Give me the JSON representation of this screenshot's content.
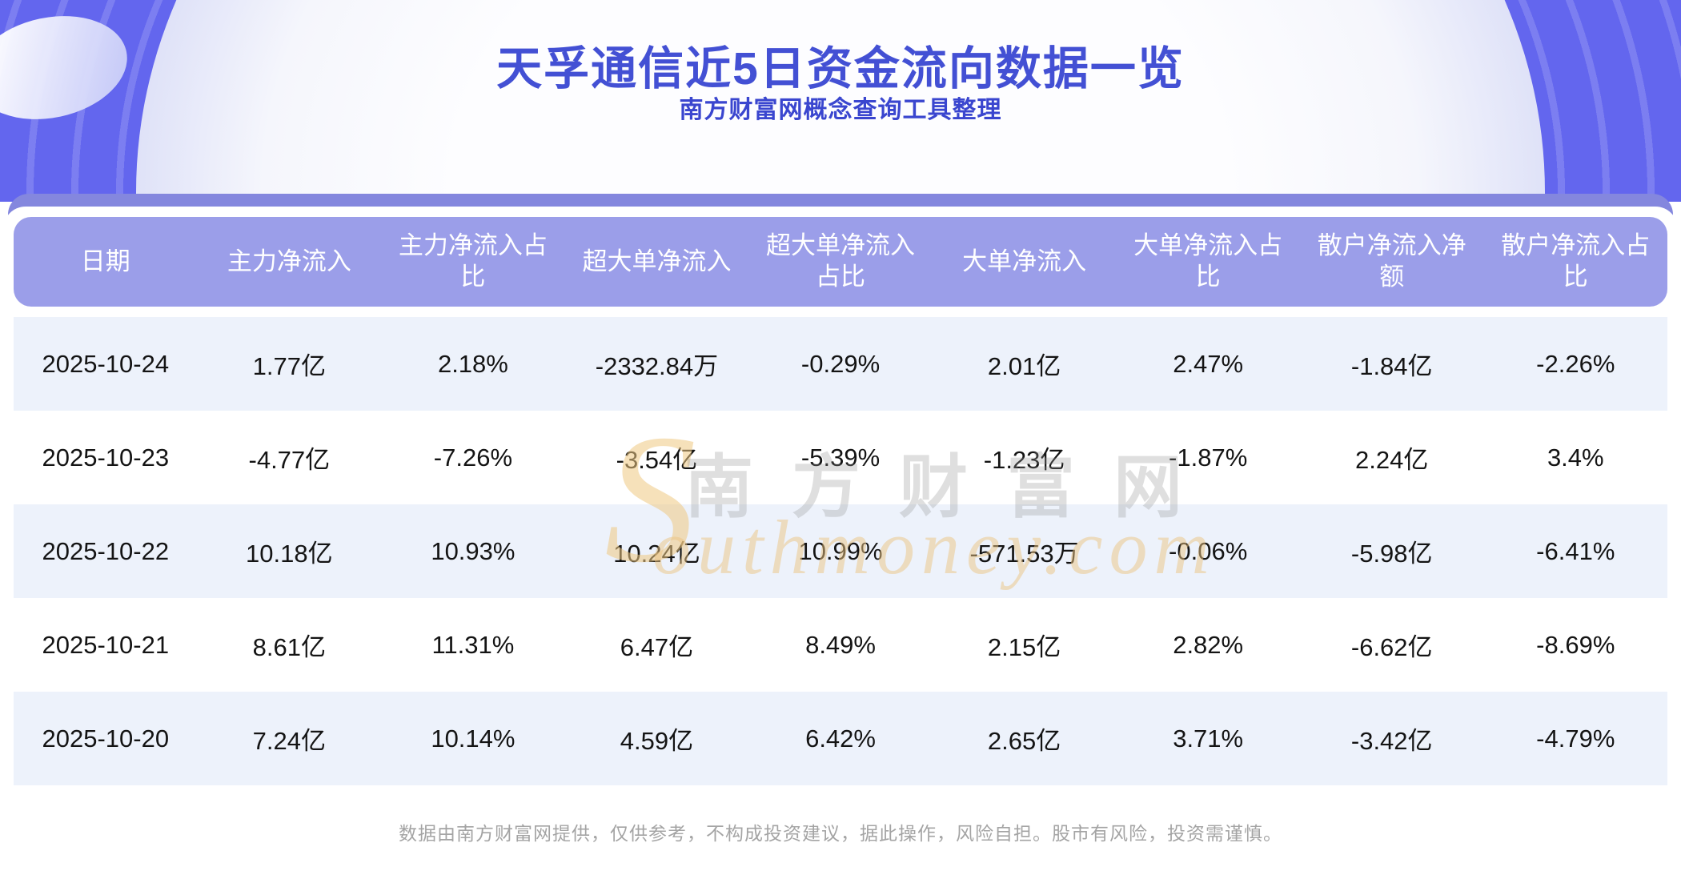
{
  "page": {
    "title": "天孚通信近5日资金流向数据一览",
    "subtitle": "南方财富网概念查询工具整理",
    "footer": "数据由南方财富网提供，仅供参考，不构成投资建议，据此操作，风险自担。股市有风险，投资需谨慎。"
  },
  "watermark": {
    "swash": "S",
    "cn": "南方财富网",
    "en": "outhmoney.com"
  },
  "colors": {
    "banner_purple": "#6366ee",
    "band_purple": "#8487de",
    "header_purple": "#9b9ee9",
    "row_alt_blue": "#edf2fb",
    "title_blue": "#4350d4",
    "watermark_gold": "#eec882",
    "watermark_gray": "#969696"
  },
  "chart_data": {
    "type": "table",
    "title": "天孚通信近5日资金流向数据一览",
    "columns": [
      "日期",
      "主力净流入",
      "主力净流入占比",
      "超大单净流入",
      "超大单净流入占比",
      "大单净流入",
      "大单净流入占比",
      "散户净流入净额",
      "散户净流入占比"
    ],
    "rows": [
      [
        "2025-10-24",
        "1.77亿",
        "2.18%",
        "-2332.84万",
        "-0.29%",
        "2.01亿",
        "2.47%",
        "-1.84亿",
        "-2.26%"
      ],
      [
        "2025-10-23",
        "-4.77亿",
        "-7.26%",
        "-3.54亿",
        "-5.39%",
        "-1.23亿",
        "-1.87%",
        "2.24亿",
        "3.4%"
      ],
      [
        "2025-10-22",
        "10.18亿",
        "10.93%",
        "10.24亿",
        "10.99%",
        "-571.53万",
        "-0.06%",
        "-5.98亿",
        "-6.41%"
      ],
      [
        "2025-10-21",
        "8.61亿",
        "11.31%",
        "6.47亿",
        "8.49%",
        "2.15亿",
        "2.82%",
        "-6.62亿",
        "-8.69%"
      ],
      [
        "2025-10-20",
        "7.24亿",
        "10.14%",
        "4.59亿",
        "6.42%",
        "2.65亿",
        "3.71%",
        "-3.42亿",
        "-4.79%"
      ]
    ]
  }
}
